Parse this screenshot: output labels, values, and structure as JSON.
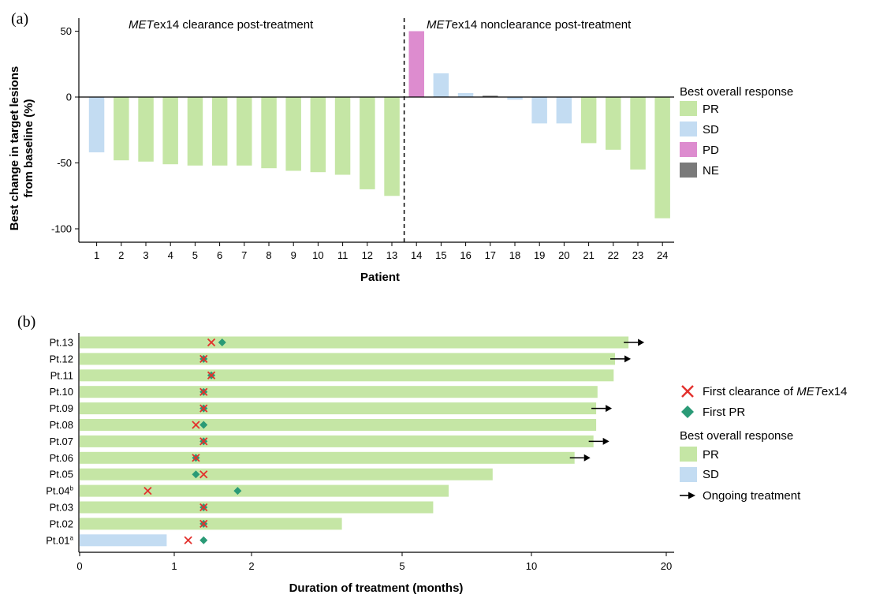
{
  "colors": {
    "PR": "#c5e6a5",
    "SD": "#c3dcf2",
    "PD": "#dd8ccf",
    "NE": "#7a7a7a",
    "x_marker": "#e3312d",
    "diamond": "#2a9a76",
    "arrow": "#000000"
  },
  "chart_data": [
    {
      "type": "bar",
      "panel_label": "(a)",
      "annotation_left": {
        "italic": "MET",
        "rest": "ex14 clearance post-treatment"
      },
      "annotation_right": {
        "italic": "MET",
        "rest": "ex14 nonclearance post-treatment"
      },
      "xlabel": "Patient",
      "ylabel_line1": "Best change in target lesions",
      "ylabel_line2": "from baseline (%)",
      "ylim": [
        -110,
        60
      ],
      "yticks": [
        50,
        0,
        -50,
        -100
      ],
      "ytick_labels": [
        "50",
        "0",
        "-50",
        "-100"
      ],
      "categories": [
        "1",
        "2",
        "3",
        "4",
        "5",
        "6",
        "7",
        "8",
        "9",
        "10",
        "11",
        "12",
        "13",
        "14",
        "15",
        "16",
        "17",
        "18",
        "19",
        "20",
        "21",
        "22",
        "23",
        "24"
      ],
      "values": [
        -42,
        -48,
        -49,
        -51,
        -52,
        -52,
        -52,
        -54,
        -56,
        -57,
        -59,
        -70,
        -75,
        50,
        18,
        3,
        1,
        -2,
        -20,
        -20,
        -35,
        -40,
        -55,
        -92
      ],
      "responses": [
        "SD",
        "PR",
        "PR",
        "PR",
        "PR",
        "PR",
        "PR",
        "PR",
        "PR",
        "PR",
        "PR",
        "PR",
        "PR",
        "PD",
        "SD",
        "SD",
        "NE",
        "SD",
        "SD",
        "SD",
        "PR",
        "PR",
        "PR",
        "PR"
      ],
      "divider_after_category": "13",
      "legend": {
        "title": "Best overall response",
        "items": [
          "PR",
          "SD",
          "PD",
          "NE"
        ]
      }
    },
    {
      "type": "swimmer",
      "panel_label": "(b)",
      "xlabel": "Duration of treatment (months)",
      "xticks": [
        0,
        1,
        2,
        5,
        10,
        20
      ],
      "xtick_labels": [
        "0",
        "1",
        "2",
        "5",
        "10",
        "20"
      ],
      "patients": [
        {
          "label": "Pt.13",
          "sup": "",
          "duration": 17.2,
          "response": "PR",
          "clearance": 1.48,
          "first_pr": 1.62,
          "ongoing": true
        },
        {
          "label": "Pt.12",
          "sup": "",
          "duration": 16.2,
          "response": "PR",
          "clearance": 1.38,
          "first_pr": 1.38,
          "ongoing": true
        },
        {
          "label": "Pt.11",
          "sup": "",
          "duration": 16.1,
          "response": "PR",
          "clearance": 1.48,
          "first_pr": 1.48,
          "ongoing": false
        },
        {
          "label": "Pt.10",
          "sup": "",
          "duration": 14.9,
          "response": "PR",
          "clearance": 1.38,
          "first_pr": 1.38,
          "ongoing": false
        },
        {
          "label": "Pt.09",
          "sup": "",
          "duration": 14.8,
          "response": "PR",
          "clearance": 1.38,
          "first_pr": 1.38,
          "ongoing": true
        },
        {
          "label": "Pt.08",
          "sup": "",
          "duration": 14.8,
          "response": "PR",
          "clearance": 1.28,
          "first_pr": 1.38,
          "ongoing": false
        },
        {
          "label": "Pt.07",
          "sup": "",
          "duration": 14.6,
          "response": "PR",
          "clearance": 1.38,
          "first_pr": 1.38,
          "ongoing": true
        },
        {
          "label": "Pt.06",
          "sup": "",
          "duration": 13.2,
          "response": "PR",
          "clearance": 1.28,
          "first_pr": 1.28,
          "ongoing": true
        },
        {
          "label": "Pt.05",
          "sup": "",
          "duration": 8.5,
          "response": "PR",
          "clearance": 1.38,
          "first_pr": 1.28,
          "ongoing": false
        },
        {
          "label": "Pt.04",
          "sup": "b",
          "duration": 6.8,
          "response": "PR",
          "clearance": 0.72,
          "first_pr": 1.82,
          "ongoing": false
        },
        {
          "label": "Pt.03",
          "sup": "",
          "duration": 6.2,
          "response": "PR",
          "clearance": 1.38,
          "first_pr": 1.38,
          "ongoing": false
        },
        {
          "label": "Pt.02",
          "sup": "",
          "duration": 3.8,
          "response": "PR",
          "clearance": 1.38,
          "first_pr": 1.38,
          "ongoing": false
        },
        {
          "label": "Pt.01",
          "sup": "a",
          "duration": 0.92,
          "response": "SD",
          "clearance": 1.18,
          "first_pr": 1.38,
          "ongoing": false
        }
      ],
      "legend": {
        "marker_items": [
          {
            "name": "clearance",
            "pre": "First clearance of ",
            "italic": "MET",
            "post": "ex14"
          },
          {
            "name": "first-pr",
            "pre": "First PR",
            "italic": "",
            "post": ""
          }
        ],
        "response_title": "Best overall response",
        "response_items": [
          "PR",
          "SD"
        ],
        "ongoing_label": "Ongoing treatment"
      }
    }
  ]
}
